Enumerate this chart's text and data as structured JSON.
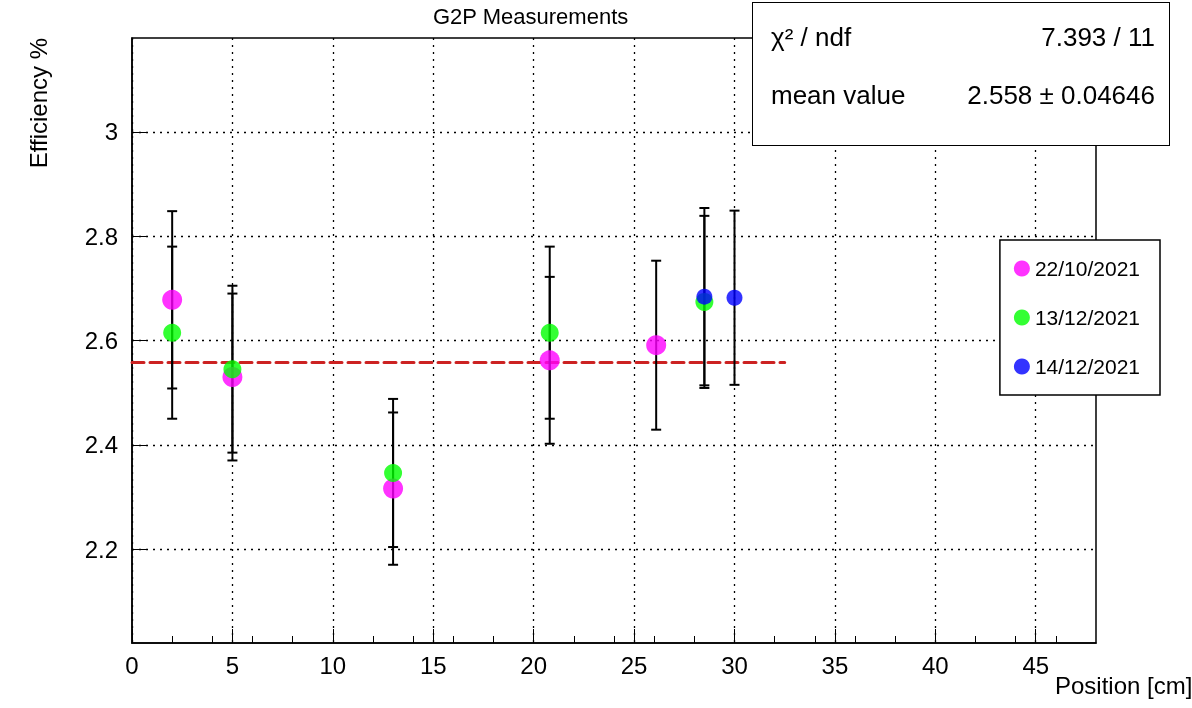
{
  "chart_data": {
    "type": "scatter",
    "title": "G2P Measurements",
    "xlabel": "Position [cm]",
    "ylabel": "Efficiency %",
    "xlim": [
      0,
      48
    ],
    "xticks": [
      0,
      5,
      10,
      15,
      20,
      25,
      30,
      35,
      40,
      45
    ],
    "ylim": [
      2.02,
      3.18
    ],
    "yticks": [
      2.2,
      2.4,
      2.6,
      2.8,
      3
    ],
    "grid": true,
    "legend": "right",
    "marker": "circle",
    "annotations": [
      "χ² / ndf",
      "7.393 / 11",
      "mean value",
      "2.558 ± 0.04646"
    ],
    "series": [
      {
        "name": "22/10/2021",
        "color": "#ff00ff",
        "x": [
          2,
          5,
          13,
          20.8,
          26.1
        ],
        "values": [
          2.678,
          2.53,
          2.316,
          2.562,
          2.591
        ],
        "errors": [
          0.17,
          0.16,
          0.146,
          0.16,
          0.162
        ]
      },
      {
        "name": "13/12/2021",
        "color": "#00ff00",
        "x": [
          2,
          5,
          13,
          20.8,
          28.5
        ],
        "values": [
          2.615,
          2.545,
          2.346,
          2.615,
          2.674
        ],
        "errors": [
          0.165,
          0.16,
          0.142,
          0.165,
          0.165
        ]
      },
      {
        "name": "14/12/2021",
        "color": "#0000ff",
        "x": [
          28.5,
          30
        ],
        "values": [
          2.684,
          2.682
        ],
        "errors": [
          0.17,
          0.167
        ]
      },
      {
        "type": "line",
        "color": "#cc2222",
        "x": [
          0,
          32.5
        ],
        "values": [
          2.558,
          2.558
        ],
        "line_style": "dashed",
        "marker": "none"
      }
    ]
  }
}
